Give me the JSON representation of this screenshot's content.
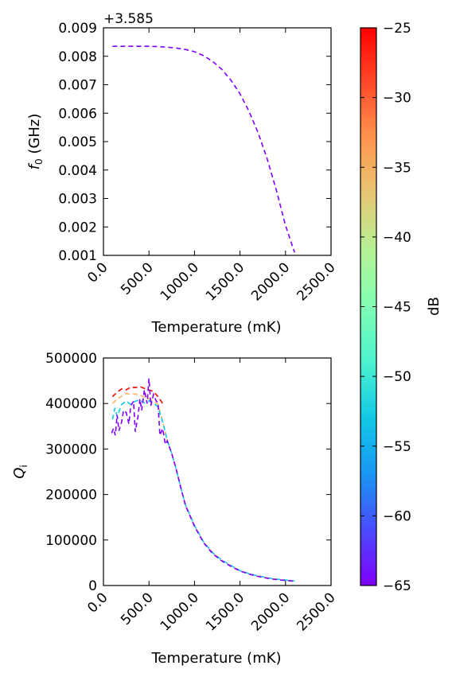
{
  "chart_data": [
    {
      "type": "line",
      "id": "top",
      "xlabel": "Temperature (mK)",
      "ylabel": "f0 (GHz)",
      "ylabel_main": "f",
      "ylabel_sub": "0",
      "ylabel_unit": " (GHz)",
      "xlim": [
        0,
        2500
      ],
      "ylim": [
        0.001,
        0.009
      ],
      "y_offset_text": "+3.585",
      "xticks": [
        "0.0",
        "500.0",
        "1000.0",
        "1500.0",
        "2000.0",
        "2500.0"
      ],
      "yticks": [
        "0.001",
        "0.002",
        "0.003",
        "0.004",
        "0.005",
        "0.006",
        "0.007",
        "0.008",
        "0.009"
      ],
      "grid": false,
      "series": [
        {
          "power_db": -65,
          "color": "#7f00ff",
          "style": "dashed",
          "x": [
            100,
            200,
            300,
            400,
            500,
            600,
            700,
            800,
            900,
            1000,
            1100,
            1200,
            1300,
            1400,
            1500,
            1600,
            1700,
            1800,
            1900,
            2000,
            2100
          ],
          "y": [
            0.00835,
            0.00835,
            0.00835,
            0.00835,
            0.00835,
            0.00834,
            0.00832,
            0.00829,
            0.00824,
            0.00816,
            0.00802,
            0.00782,
            0.00754,
            0.00716,
            0.00668,
            0.00606,
            0.0053,
            0.00438,
            0.00328,
            0.00205,
            0.0011
          ]
        }
      ]
    },
    {
      "type": "line",
      "id": "bottom",
      "xlabel": "Temperature (mK)",
      "ylabel": "Qi",
      "ylabel_main": "Q",
      "ylabel_sub": "i",
      "xlim": [
        0,
        2500
      ],
      "ylim": [
        0,
        500000
      ],
      "xticks": [
        "0.0",
        "500.0",
        "1000.0",
        "1500.0",
        "2000.0",
        "2500.0"
      ],
      "yticks": [
        "0",
        "100000",
        "200000",
        "300000",
        "400000",
        "500000"
      ],
      "grid": false,
      "series": [
        {
          "power_db": -25,
          "color": "#ff0000",
          "style": "dashed",
          "x": [
            100,
            150,
            200,
            250,
            300,
            350,
            400,
            450,
            500,
            550,
            600,
            650
          ],
          "y": [
            415000,
            425000,
            432000,
            430000,
            436000,
            435000,
            437000,
            433000,
            430000,
            426000,
            415000,
            400000
          ]
        },
        {
          "power_db": -35,
          "color": "#ffb360",
          "style": "dashed",
          "x": [
            100,
            150,
            200,
            250,
            300,
            350,
            400,
            450,
            500,
            550,
            600,
            650,
            700,
            750,
            800,
            850,
            900,
            1000,
            1100,
            1200,
            1300,
            1400,
            1500,
            1600,
            1700,
            1800,
            1900,
            2000,
            2100
          ],
          "y": [
            400000,
            410000,
            416000,
            422000,
            420000,
            421000,
            418000,
            414000,
            410000,
            405000,
            398000,
            360000,
            320000,
            290000,
            255000,
            215000,
            178000,
            132000,
            96000,
            72000,
            56000,
            44000,
            33000,
            26000,
            21000,
            17000,
            14000,
            12000,
            10000
          ]
        },
        {
          "power_db": -55,
          "color": "#12c8e6",
          "style": "dashed",
          "x": [
            100,
            125,
            150,
            200,
            250,
            300,
            350,
            400,
            450,
            500,
            550,
            600,
            650,
            700,
            750,
            800,
            850,
            900,
            1000,
            1100,
            1200,
            1300,
            1400,
            1500,
            1600,
            1700,
            1800,
            1900,
            2000,
            2100
          ],
          "y": [
            365000,
            390000,
            372000,
            398000,
            405000,
            398000,
            405000,
            408000,
            401000,
            406000,
            402000,
            392000,
            360000,
            320000,
            290000,
            255000,
            215000,
            178000,
            132000,
            96000,
            72000,
            56000,
            44000,
            33000,
            26000,
            21000,
            17000,
            14000,
            12000,
            10000
          ]
        },
        {
          "power_db": -65,
          "color": "#7f00ff",
          "style": "dashed",
          "x": [
            90,
            110,
            130,
            150,
            170,
            200,
            220,
            250,
            280,
            300,
            330,
            350,
            380,
            400,
            420,
            450,
            480,
            500,
            520,
            550,
            580,
            600,
            620,
            650,
            680,
            700,
            750,
            800,
            850,
            900,
            1000,
            1100,
            1200,
            1300,
            1400,
            1500,
            1600,
            1700,
            1800,
            1900,
            2000,
            2100
          ],
          "y": [
            335000,
            345000,
            330000,
            375000,
            340000,
            360000,
            385000,
            380000,
            355000,
            395000,
            405000,
            338000,
            372000,
            410000,
            385000,
            430000,
            400000,
            455000,
            395000,
            420000,
            405000,
            402000,
            330000,
            345000,
            310000,
            318000,
            290000,
            255000,
            215000,
            176000,
            130000,
            94000,
            70000,
            54000,
            42000,
            32000,
            25000,
            20000,
            16000,
            13000,
            11000,
            9500
          ]
        }
      ]
    }
  ],
  "colorbar": {
    "label": "dB",
    "range": [
      -65,
      -25
    ],
    "ticks": [
      "−25",
      "−30",
      "−35",
      "−40",
      "−45",
      "−50",
      "−55",
      "−60",
      "−65"
    ],
    "colormap": "rainbow",
    "stops": [
      "#7f00ff",
      "#4a4bfc",
      "#1996f3",
      "#12c8e6",
      "#4cf2ce",
      "#80ffb4",
      "#b4f296",
      "#e6c874",
      "#ff964f",
      "#ff4b28",
      "#ff0000"
    ]
  }
}
